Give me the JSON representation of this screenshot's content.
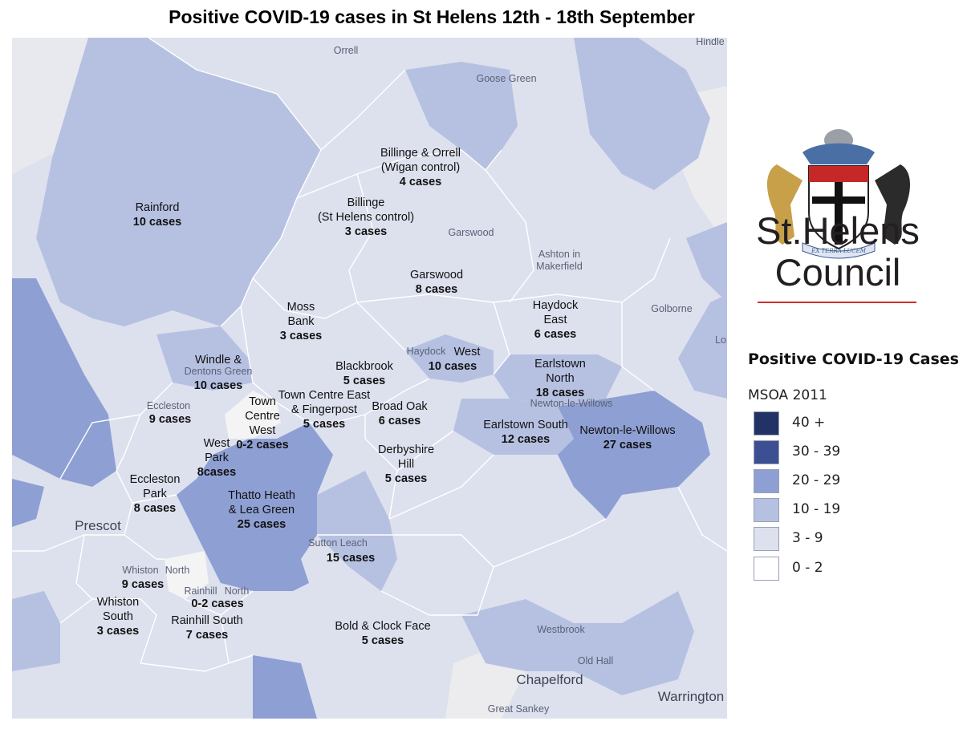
{
  "title": "Positive COVID-19 cases in St Helens 12th - 18th September",
  "colors": {
    "band_40_plus": "#233264",
    "band_30_39": "#3d4f93",
    "band_20_29": "#8e9fd3",
    "band_10_19": "#b6c1e2",
    "band_3_9": "#dde1ee",
    "band_0_2": "#f4f4f5",
    "background_out": "#ececee",
    "logo_rule": "#d32f2f"
  },
  "areas": [
    {
      "name": "Rainford",
      "cases": "10 cases",
      "band": "10-19"
    },
    {
      "name": "Billinge & Orrell\n(Wigan control)",
      "cases": "4 cases",
      "band": "3-9"
    },
    {
      "name": "Billinge\n(St Helens control)",
      "cases": "3 cases",
      "band": "3-9"
    },
    {
      "name": "Garswood",
      "cases": "8 cases",
      "band": "3-9"
    },
    {
      "name": "Moss\nBank",
      "cases": "3 cases",
      "band": "3-9"
    },
    {
      "name": "Haydock\nEast",
      "cases": "6 cases",
      "band": "3-9"
    },
    {
      "name": "Windle &",
      "cases": "10 cases",
      "band": "10-19"
    },
    {
      "name": "Blackbrook",
      "cases": "5 cases",
      "band": "3-9"
    },
    {
      "name": "West",
      "cases": "10 cases",
      "band": "10-19"
    },
    {
      "name": "Earlstown\nNorth",
      "cases": "18 cases",
      "band": "10-19"
    },
    {
      "name": "Town Centre East\n& Fingerpost",
      "cases": "5 cases",
      "band": "3-9"
    },
    {
      "name": "Town\nCentre\nWest",
      "cases": "0-2 cases",
      "band": "0-2"
    },
    {
      "name": "",
      "cases": "9 cases",
      "band": "3-9"
    },
    {
      "name": "Broad Oak",
      "cases": "6 cases",
      "band": "3-9"
    },
    {
      "name": "Earlstown South",
      "cases": "12 cases",
      "band": "10-19"
    },
    {
      "name": "Newton-le-Willows",
      "cases": "27 cases",
      "band": "20-29"
    },
    {
      "name": "West\nPark",
      "cases": "8cases",
      "band": "3-9"
    },
    {
      "name": "Derbyshire\nHill",
      "cases": "5 cases",
      "band": "3-9"
    },
    {
      "name": "Eccleston\nPark",
      "cases": "8 cases",
      "band": "3-9"
    },
    {
      "name": "Thatto Heath\n& Lea Green",
      "cases": "25 cases",
      "band": "20-29"
    },
    {
      "name": "",
      "cases": "15 cases",
      "band": "10-19"
    },
    {
      "name": "",
      "cases": "9 cases",
      "band": "3-9"
    },
    {
      "name": "",
      "cases": "0-2 cases",
      "band": "0-2"
    },
    {
      "name": "Whiston\nSouth",
      "cases": "3 cases",
      "band": "3-9"
    },
    {
      "name": "Rainhill South",
      "cases": "7 cases",
      "band": "3-9"
    },
    {
      "name": "Bold & Clock Face",
      "cases": "5 cases",
      "band": "3-9"
    }
  ],
  "places": [
    "Orrell",
    "Goose Green",
    "Hindle",
    "Garswood",
    "Ashton in\nMakerfield",
    "Golborne",
    "Lo",
    "Haydock",
    "Dentons Green",
    "Eccleston",
    "Newton-le-Willows",
    "Prescot",
    "Sutton Leach",
    "Whiston",
    "North",
    "Rainhill",
    "North",
    "Westbrook",
    "Old Hall",
    "Chapelford",
    "Warrington",
    "Great Sankey"
  ],
  "logo": {
    "motto": "EX TERRA LUCEM",
    "name": "St.Helens\nCouncil"
  },
  "legend": {
    "title": "Positive COVID-19 Cases",
    "subtitle": "MSOA 2011",
    "items": [
      {
        "label": "40 +",
        "color": "#233264"
      },
      {
        "label": "30 - 39",
        "color": "#3d4f93"
      },
      {
        "label": "20 - 29",
        "color": "#8e9fd3"
      },
      {
        "label": "10 - 19",
        "color": "#b6c1e2"
      },
      {
        "label": "3 - 9",
        "color": "#dde1ee"
      },
      {
        "label": "0 - 2",
        "color": "#ffffff"
      }
    ]
  }
}
